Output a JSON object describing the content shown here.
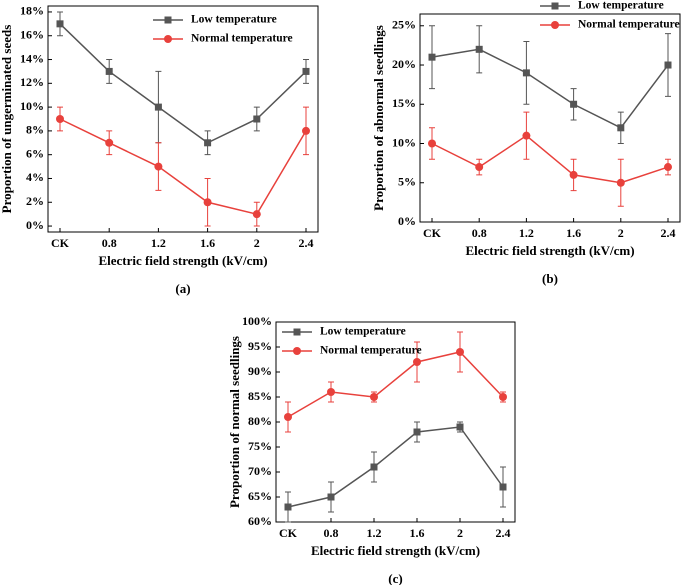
{
  "chart_data": [
    {
      "type": "line",
      "caption": "(a)",
      "x_label": "Electric field strength  (kV/cm)",
      "y_label": "Proportion of ungerminated seeds",
      "categories": [
        "CK",
        "0.8",
        "1.2",
        "1.6",
        "2",
        "2.4"
      ],
      "ylim": [
        -0.5,
        18.5
      ],
      "yticks": [
        {
          "value": 0,
          "label": "0%"
        },
        {
          "value": 2,
          "label": "2%"
        },
        {
          "value": 4,
          "label": "4%"
        },
        {
          "value": 6,
          "label": "6%"
        },
        {
          "value": 8,
          "label": "8%"
        },
        {
          "value": 10,
          "label": "10%"
        },
        {
          "value": 12,
          "label": "12%"
        },
        {
          "value": 14,
          "label": "14%"
        },
        {
          "value": 16,
          "label": "16%"
        },
        {
          "value": 18,
          "label": "18%"
        }
      ],
      "legend": "upper center",
      "series": [
        {
          "name": "Low temperature",
          "color": "#555555",
          "marker": "square",
          "values": [
            17,
            13,
            10,
            7,
            9,
            13
          ],
          "errors": [
            1,
            1,
            3,
            1,
            1,
            1
          ]
        },
        {
          "name": "Normal temperature",
          "color": "#e8413c",
          "marker": "circle",
          "values": [
            9,
            7,
            5,
            2,
            1,
            8
          ],
          "errors": [
            1,
            1,
            2,
            2,
            1,
            2
          ]
        }
      ]
    },
    {
      "type": "line",
      "caption": "(b)",
      "x_label": "Electric field strength  (kV/cm)",
      "y_label": "Proportion of abnormal seedlings",
      "categories": [
        "CK",
        "0.8",
        "1.2",
        "1.6",
        "2",
        "2.4"
      ],
      "ylim": [
        0,
        26.5
      ],
      "yticks": [
        {
          "value": 0,
          "label": "0%"
        },
        {
          "value": 5,
          "label": "5%"
        },
        {
          "value": 10,
          "label": "10%"
        },
        {
          "value": 15,
          "label": "15%"
        },
        {
          "value": 20,
          "label": "20%"
        },
        {
          "value": 25,
          "label": "25%"
        }
      ],
      "legend": "above right",
      "series": [
        {
          "name": "Low temperature",
          "color": "#555555",
          "marker": "square",
          "values": [
            21,
            22,
            19,
            15,
            12,
            20
          ],
          "errors": [
            4,
            3,
            4,
            2,
            2,
            4
          ]
        },
        {
          "name": "Normal temperature",
          "color": "#e8413c",
          "marker": "circle",
          "values": [
            10,
            7,
            11,
            6,
            5,
            7
          ],
          "errors": [
            2,
            1,
            3,
            2,
            3,
            1
          ]
        }
      ]
    },
    {
      "type": "line",
      "caption": "(c)",
      "x_label": "Electric field strength  (kV/cm)",
      "y_label": "Proportion of normal seedlings",
      "categories": [
        "CK",
        "0.8",
        "1.2",
        "1.6",
        "2",
        "2.4"
      ],
      "ylim": [
        60,
        100
      ],
      "yticks": [
        {
          "value": 60,
          "label": "60%"
        },
        {
          "value": 65,
          "label": "65%"
        },
        {
          "value": 70,
          "label": "70%"
        },
        {
          "value": 75,
          "label": "75%"
        },
        {
          "value": 80,
          "label": "80%"
        },
        {
          "value": 85,
          "label": "85%"
        },
        {
          "value": 90,
          "label": "90%"
        },
        {
          "value": 95,
          "label": "95%"
        },
        {
          "value": 100,
          "label": "100%"
        }
      ],
      "legend": "upper left",
      "series": [
        {
          "name": "Low temperature",
          "color": "#555555",
          "marker": "square",
          "values": [
            63,
            65,
            71,
            78,
            79,
            67
          ],
          "errors": [
            3,
            3,
            3,
            2,
            1,
            4
          ]
        },
        {
          "name": "Normal temperature",
          "color": "#e8413c",
          "marker": "circle",
          "values": [
            81,
            86,
            85,
            92,
            94,
            85
          ],
          "errors": [
            3,
            2,
            1,
            4,
            4,
            1
          ]
        }
      ]
    }
  ]
}
